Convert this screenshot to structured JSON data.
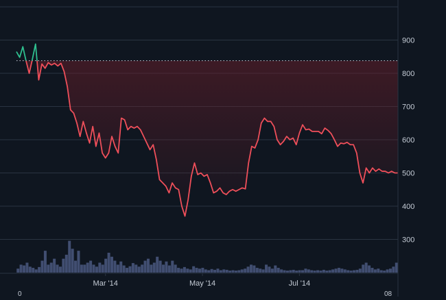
{
  "chart_data": {
    "type": "area",
    "title": "",
    "xlabel": "",
    "ylabel": "",
    "x_tick_labels": [
      "Mar '14",
      "May '14",
      "Jul '14"
    ],
    "x_edge_labels": [
      "0",
      "08"
    ],
    "y_ticks": [
      300,
      400,
      500,
      600,
      700,
      800,
      900
    ],
    "ylim": [
      200,
      1000
    ],
    "xlim": [
      "2014-01-04",
      "2014-09-01"
    ],
    "y_axis_position": "right",
    "grid": true,
    "baseline": 838,
    "colors": {
      "background": "#0f1620",
      "line_above_baseline": "#2fbf8f",
      "line_below_baseline": "#ef4f5a",
      "area_fill": "#6b1e2a",
      "grid": "#2a3442",
      "baseline": "#b7c0cc",
      "volume": "#4a5880",
      "tick_text": "#c5ccd6"
    },
    "series": [
      {
        "values": [
          [
            "2014-01-04",
            865
          ],
          [
            "2014-01-06",
            848
          ],
          [
            "2014-01-08",
            880
          ],
          [
            "2014-01-10",
            838
          ],
          [
            "2014-01-12",
            800
          ],
          [
            "2014-01-14",
            842
          ],
          [
            "2014-01-16",
            888
          ],
          [
            "2014-01-18",
            780
          ],
          [
            "2014-01-20",
            828
          ],
          [
            "2014-01-22",
            815
          ],
          [
            "2014-01-24",
            832
          ],
          [
            "2014-01-26",
            825
          ],
          [
            "2014-01-28",
            830
          ],
          [
            "2014-01-30",
            822
          ],
          [
            "2014-02-01",
            830
          ],
          [
            "2014-02-03",
            805
          ],
          [
            "2014-02-05",
            760
          ],
          [
            "2014-02-07",
            690
          ],
          [
            "2014-02-09",
            680
          ],
          [
            "2014-02-11",
            650
          ],
          [
            "2014-02-13",
            610
          ],
          [
            "2014-02-15",
            655
          ],
          [
            "2014-02-17",
            620
          ],
          [
            "2014-02-19",
            590
          ],
          [
            "2014-02-21",
            640
          ],
          [
            "2014-02-23",
            580
          ],
          [
            "2014-02-25",
            620
          ],
          [
            "2014-02-27",
            560
          ],
          [
            "2014-03-01",
            545
          ],
          [
            "2014-03-03",
            560
          ],
          [
            "2014-03-05",
            610
          ],
          [
            "2014-03-07",
            580
          ],
          [
            "2014-03-09",
            560
          ],
          [
            "2014-03-11",
            665
          ],
          [
            "2014-03-13",
            660
          ],
          [
            "2014-03-15",
            630
          ],
          [
            "2014-03-17",
            640
          ],
          [
            "2014-03-19",
            635
          ],
          [
            "2014-03-21",
            640
          ],
          [
            "2014-03-23",
            630
          ],
          [
            "2014-03-25",
            610
          ],
          [
            "2014-03-27",
            590
          ],
          [
            "2014-03-29",
            570
          ],
          [
            "2014-03-31",
            585
          ],
          [
            "2014-04-02",
            540
          ],
          [
            "2014-04-04",
            480
          ],
          [
            "2014-04-06",
            470
          ],
          [
            "2014-04-08",
            460
          ],
          [
            "2014-04-10",
            440
          ],
          [
            "2014-04-12",
            470
          ],
          [
            "2014-04-14",
            455
          ],
          [
            "2014-04-16",
            450
          ],
          [
            "2014-04-18",
            400
          ],
          [
            "2014-04-20",
            370
          ],
          [
            "2014-04-22",
            420
          ],
          [
            "2014-04-24",
            490
          ],
          [
            "2014-04-26",
            530
          ],
          [
            "2014-04-28",
            495
          ],
          [
            "2014-04-30",
            500
          ],
          [
            "2014-05-02",
            490
          ],
          [
            "2014-05-04",
            495
          ],
          [
            "2014-05-06",
            470
          ],
          [
            "2014-05-08",
            440
          ],
          [
            "2014-05-10",
            445
          ],
          [
            "2014-05-12",
            455
          ],
          [
            "2014-05-14",
            440
          ],
          [
            "2014-05-16",
            435
          ],
          [
            "2014-05-18",
            445
          ],
          [
            "2014-05-20",
            450
          ],
          [
            "2014-05-22",
            445
          ],
          [
            "2014-05-24",
            450
          ],
          [
            "2014-05-26",
            455
          ],
          [
            "2014-05-28",
            452
          ],
          [
            "2014-05-30",
            530
          ],
          [
            "2014-06-01",
            580
          ],
          [
            "2014-06-03",
            575
          ],
          [
            "2014-06-05",
            600
          ],
          [
            "2014-06-07",
            650
          ],
          [
            "2014-06-09",
            665
          ],
          [
            "2014-06-11",
            655
          ],
          [
            "2014-06-13",
            655
          ],
          [
            "2014-06-15",
            640
          ],
          [
            "2014-06-17",
            600
          ],
          [
            "2014-06-19",
            585
          ],
          [
            "2014-06-21",
            595
          ],
          [
            "2014-06-23",
            610
          ],
          [
            "2014-06-25",
            600
          ],
          [
            "2014-06-27",
            605
          ],
          [
            "2014-06-29",
            585
          ],
          [
            "2014-07-01",
            620
          ],
          [
            "2014-07-03",
            645
          ],
          [
            "2014-07-05",
            630
          ],
          [
            "2014-07-07",
            632
          ],
          [
            "2014-07-09",
            625
          ],
          [
            "2014-07-11",
            625
          ],
          [
            "2014-07-13",
            625
          ],
          [
            "2014-07-15",
            618
          ],
          [
            "2014-07-17",
            635
          ],
          [
            "2014-07-19",
            628
          ],
          [
            "2014-07-21",
            618
          ],
          [
            "2014-07-23",
            600
          ],
          [
            "2014-07-25",
            580
          ],
          [
            "2014-07-27",
            590
          ],
          [
            "2014-07-29",
            588
          ],
          [
            "2014-07-31",
            592
          ],
          [
            "2014-08-02",
            585
          ],
          [
            "2014-08-04",
            585
          ],
          [
            "2014-08-06",
            560
          ],
          [
            "2014-08-08",
            500
          ],
          [
            "2014-08-10",
            470
          ],
          [
            "2014-08-12",
            515
          ],
          [
            "2014-08-14",
            500
          ],
          [
            "2014-08-16",
            515
          ],
          [
            "2014-08-18",
            505
          ],
          [
            "2014-08-20",
            512
          ],
          [
            "2014-08-22",
            505
          ],
          [
            "2014-08-24",
            505
          ],
          [
            "2014-08-26",
            500
          ],
          [
            "2014-08-28",
            505
          ],
          [
            "2014-08-30",
            500
          ],
          [
            "2014-09-01",
            500
          ]
        ]
      }
    ],
    "volume": {
      "scale": "relative, 0-1",
      "values": [
        0.1,
        0.2,
        0.18,
        0.25,
        0.15,
        0.12,
        0.08,
        0.14,
        0.3,
        0.55,
        0.2,
        0.25,
        0.35,
        0.2,
        0.15,
        0.35,
        0.45,
        0.8,
        0.6,
        0.3,
        0.55,
        0.2,
        0.2,
        0.25,
        0.3,
        0.2,
        0.15,
        0.25,
        0.2,
        0.35,
        0.5,
        0.4,
        0.3,
        0.2,
        0.28,
        0.18,
        0.12,
        0.16,
        0.24,
        0.2,
        0.15,
        0.2,
        0.3,
        0.35,
        0.2,
        0.25,
        0.4,
        0.3,
        0.2,
        0.28,
        0.18,
        0.3,
        0.2,
        0.12,
        0.1,
        0.14,
        0.1,
        0.08,
        0.16,
        0.12,
        0.1,
        0.12,
        0.08,
        0.06,
        0.09,
        0.07,
        0.1,
        0.06,
        0.08,
        0.07,
        0.05,
        0.06,
        0.05,
        0.06,
        0.08,
        0.1,
        0.15,
        0.2,
        0.18,
        0.12,
        0.1,
        0.08,
        0.2,
        0.15,
        0.1,
        0.18,
        0.12,
        0.08,
        0.06,
        0.05,
        0.06,
        0.07,
        0.05,
        0.06,
        0.06,
        0.1,
        0.08,
        0.06,
        0.05,
        0.06,
        0.05,
        0.07,
        0.05,
        0.06,
        0.08,
        0.1,
        0.12,
        0.1,
        0.08,
        0.06,
        0.05,
        0.06,
        0.07,
        0.1,
        0.2,
        0.25,
        0.18,
        0.12,
        0.08,
        0.1,
        0.06,
        0.05,
        0.08,
        0.1,
        0.15,
        0.25
      ]
    }
  }
}
